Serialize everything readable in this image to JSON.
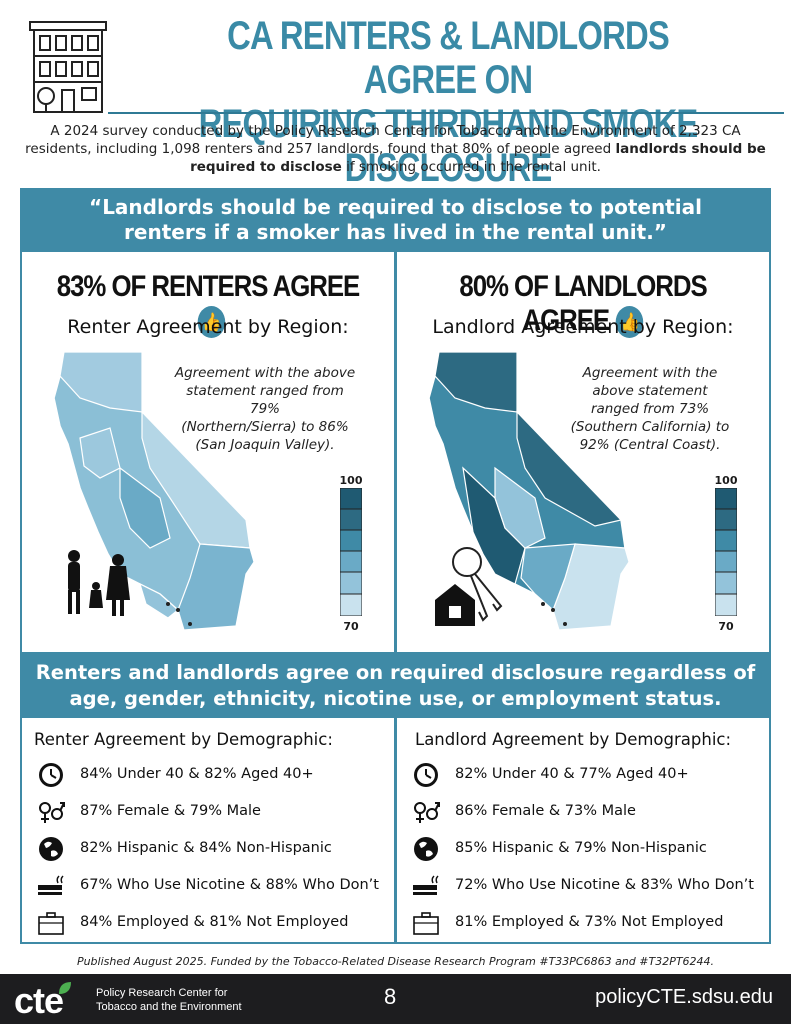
{
  "header": {
    "title_line1": "CA RENTERS & LANDLORDS AGREE ON",
    "title_line2": "REQUIRING THIRDHAND SMOKE DISCLOSURE",
    "icon": "apartment-building-icon"
  },
  "intro": {
    "text_before": "A 2024 survey conducted by the Policy Research Center for Tobacco and the Environment of 2,323 CA residents, including 1,098 renters and 257 landlords, found that 80% of people agreed ",
    "text_bold": "landlords should be required to disclose",
    "text_after": " if smoking occurred in the rental unit."
  },
  "quote": {
    "line1": "“Landlords should be required to disclose to potential",
    "line2": "renters if a smoker has lived in the rental unit.”"
  },
  "renters": {
    "headline": "83% OF RENTERS AGREE",
    "region_title": "Renter Agreement by Region:",
    "note_line1": "Agreement with the above",
    "note_line2": "statement ranged from 79%",
    "note_line3": "(Northern/Sierra) to 86%",
    "note_line4": "(San Joaquin Valley).",
    "scale_max": "100",
    "scale_min": "70",
    "illustration": "family-silhouette-icon"
  },
  "landlords": {
    "headline": "80% OF LANDLORDS AGREE",
    "region_title": "Landlord Agreement by Region:",
    "note_line1": "Agreement with the",
    "note_line2": "above statement",
    "note_line3": "ranged from 73%",
    "note_line4": "(Southern California) to",
    "note_line5": "92% (Central Coast).",
    "scale_max": "100",
    "scale_min": "70",
    "illustration": "house-keys-icon"
  },
  "band": {
    "line1": "Renters and landlords agree on required disclosure regardless of",
    "line2": "age, gender, ethnicity, nicotine use, or employment status."
  },
  "renter_demo": {
    "title": "Renter Agreement by Demographic:",
    "rows": [
      {
        "icon": "clock-icon",
        "text": "84% Under 40 & 82% Aged 40+"
      },
      {
        "icon": "gender-symbols-icon",
        "text": "87% Female & 79% Male"
      },
      {
        "icon": "globe-icon",
        "text": "82% Hispanic & 84% Non-Hispanic"
      },
      {
        "icon": "vape-cigarette-icon",
        "text": "67% Who Use Nicotine & 88% Who Don’t"
      },
      {
        "icon": "briefcase-icon",
        "text": "84% Employed & 81% Not Employed"
      }
    ]
  },
  "landlord_demo": {
    "title": "Landlord Agreement by Demographic:",
    "rows": [
      {
        "icon": "clock-icon",
        "text": "82% Under 40 & 77% Aged 40+"
      },
      {
        "icon": "gender-symbols-icon",
        "text": "86% Female & 73% Male"
      },
      {
        "icon": "globe-icon",
        "text": "85% Hispanic & 79% Non-Hispanic"
      },
      {
        "icon": "vape-cigarette-icon",
        "text": "72% Who Use Nicotine & 83% Who Don’t"
      },
      {
        "icon": "briefcase-icon",
        "text": "81% Employed & 73% Not Employed"
      }
    ]
  },
  "footnote": "Published August 2025. Funded by the Tobacco-Related Disease Research Program #T33PC6863 and #T32PT6244.",
  "footer": {
    "logo": "cte",
    "org_line1": "Policy Research Center for",
    "org_line2": "Tobacco and the Environment",
    "page": "8",
    "site": "policyCTE.sdsu.edu"
  },
  "colors": {
    "accent": "#3f8aa6",
    "title": "#3a8aa6",
    "footer": "#1d1d1f",
    "map_light": "#c9e2ee",
    "map_mid": "#6aaac6",
    "map_dark": "#2d6a82"
  }
}
